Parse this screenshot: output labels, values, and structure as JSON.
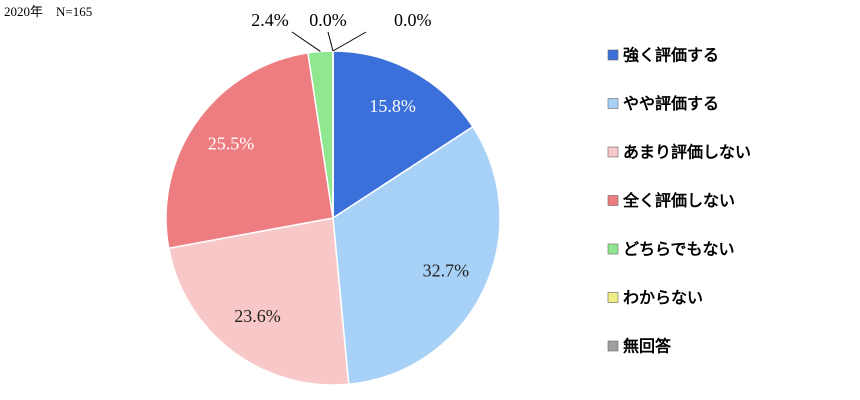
{
  "chart_data": {
    "type": "pie",
    "title": "2020年　N=165",
    "categories": [
      "強く評価する",
      "やや評価する",
      "あまり評価しない",
      "全く評価しない",
      "どちらでもない",
      "わからない",
      "無回答"
    ],
    "values": [
      15.8,
      32.7,
      23.6,
      25.5,
      2.4,
      0.0,
      0.0
    ],
    "value_labels": [
      "15.8%",
      "32.7%",
      "23.6%",
      "25.5%",
      "2.4%",
      "0.0%",
      "0.0%"
    ],
    "colors": [
      "#3b6fd9",
      "#a8d1f7",
      "#f8c8c8",
      "#ee7d82",
      "#8fe88f",
      "#f0ef86",
      "#a0a0a0"
    ],
    "legend": "right"
  }
}
